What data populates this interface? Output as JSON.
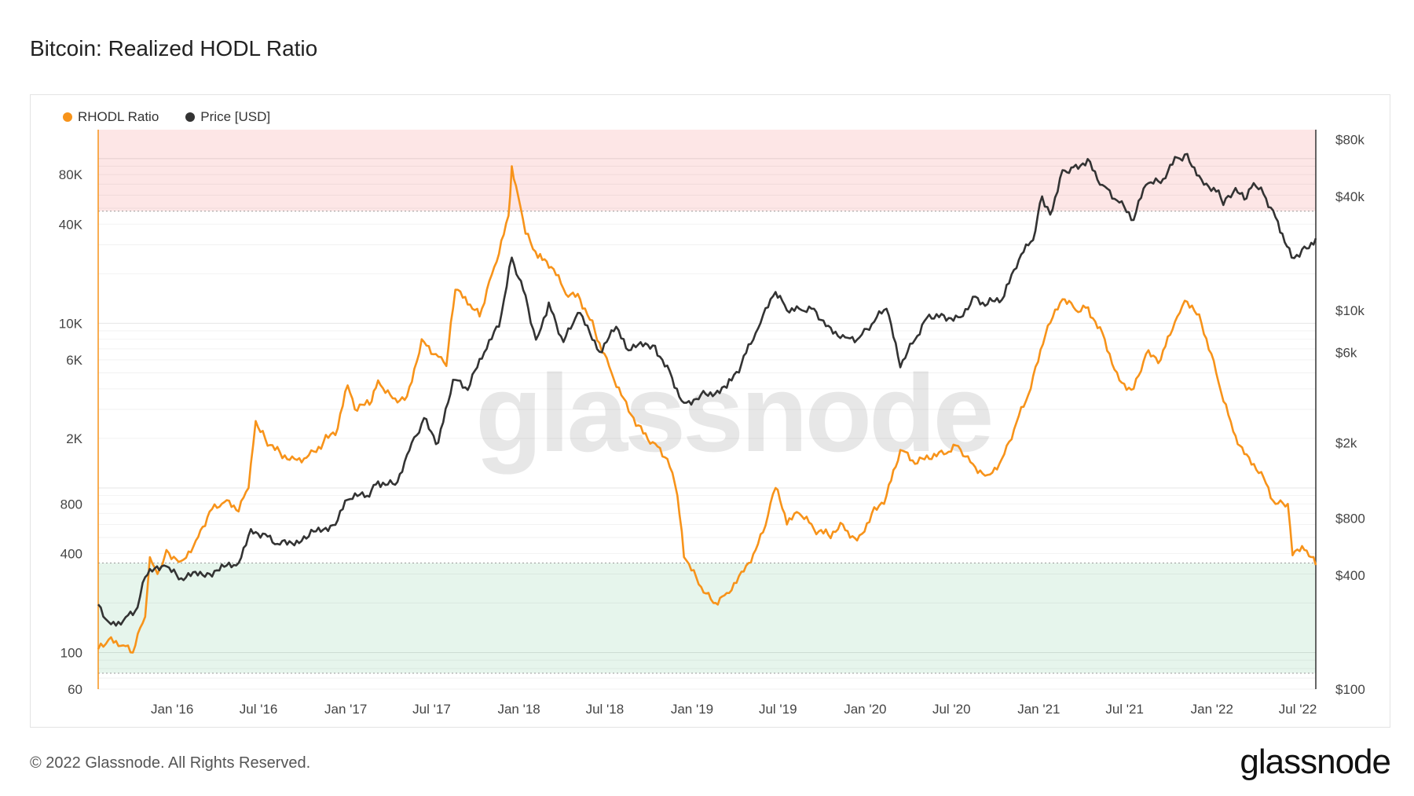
{
  "page": {
    "title": "Bitcoin: Realized HODL Ratio",
    "footer": "© 2022 Glassnode. All Rights Reserved.",
    "brand": "glassnode",
    "watermark": "glassnode"
  },
  "legend": [
    {
      "label": "RHODL Ratio",
      "color": "#f7931a"
    },
    {
      "label": "Price [USD]",
      "color": "#333333"
    }
  ],
  "chart_data": {
    "type": "line",
    "title": "Bitcoin: Realized HODL Ratio",
    "x_ticks": [
      "Jan '16",
      "Jul '16",
      "Jan '17",
      "Jul '17",
      "Jan '18",
      "Jul '18",
      "Jan '19",
      "Jul '19",
      "Jan '20",
      "Jul '20",
      "Jan '21",
      "Jul '21",
      "Jan '22",
      "Jul '22"
    ],
    "x_range": [
      "2015-07-29",
      "2022-08-08"
    ],
    "left_axis": {
      "scale": "log",
      "range": [
        60,
        150000
      ],
      "ticks": [
        "80K",
        "40K",
        "10K",
        "6K",
        "2K",
        "800",
        "400",
        "100",
        "60"
      ]
    },
    "right_axis": {
      "scale": "log",
      "range": [
        100,
        90000
      ],
      "ticks": [
        "$80k",
        "$40k",
        "$10k",
        "$6k",
        "$2k",
        "$800",
        "$400",
        "$100"
      ]
    },
    "bands": [
      {
        "name": "top",
        "color": "#fde6e6",
        "axis": "left",
        "from": 48000,
        "to": 150000
      },
      {
        "name": "bottom",
        "color": "#e6f5ec",
        "axis": "left",
        "from": 75,
        "to": 350
      }
    ],
    "grid": true,
    "legend_position": "top-left",
    "series": [
      {
        "name": "RHODL Ratio",
        "axis": "left",
        "color": "#f7931a",
        "points": [
          [
            "2015-07-29",
            105
          ],
          [
            "2015-08-20",
            120
          ],
          [
            "2015-09-15",
            110
          ],
          [
            "2015-10-10",
            100
          ],
          [
            "2015-11-05",
            165
          ],
          [
            "2015-11-15",
            380
          ],
          [
            "2015-12-01",
            300
          ],
          [
            "2015-12-20",
            420
          ],
          [
            "2016-01-20",
            360
          ],
          [
            "2016-02-20",
            480
          ],
          [
            "2016-03-20",
            720
          ],
          [
            "2016-04-20",
            820
          ],
          [
            "2016-05-20",
            720
          ],
          [
            "2016-06-10",
            1000
          ],
          [
            "2016-06-25",
            2550
          ],
          [
            "2016-07-15",
            2000
          ],
          [
            "2016-08-15",
            1650
          ],
          [
            "2016-09-15",
            1500
          ],
          [
            "2016-10-15",
            1580
          ],
          [
            "2016-11-15",
            1900
          ],
          [
            "2016-12-15",
            2300
          ],
          [
            "2017-01-05",
            4200
          ],
          [
            "2017-01-20",
            3000
          ],
          [
            "2017-02-20",
            3200
          ],
          [
            "2017-03-10",
            4500
          ],
          [
            "2017-04-10",
            3500
          ],
          [
            "2017-05-10",
            3600
          ],
          [
            "2017-06-10",
            8000
          ],
          [
            "2017-07-10",
            6500
          ],
          [
            "2017-08-01",
            5500
          ],
          [
            "2017-08-20",
            16000
          ],
          [
            "2017-09-15",
            13000
          ],
          [
            "2017-10-10",
            11000
          ],
          [
            "2017-11-10",
            22000
          ],
          [
            "2017-12-10",
            45000
          ],
          [
            "2017-12-17",
            90000
          ],
          [
            "2017-12-30",
            60000
          ],
          [
            "2018-01-15",
            35000
          ],
          [
            "2018-02-10",
            25000
          ],
          [
            "2018-03-10",
            22000
          ],
          [
            "2018-04-10",
            15000
          ],
          [
            "2018-05-10",
            14000
          ],
          [
            "2018-06-10",
            9000
          ],
          [
            "2018-07-10",
            5500
          ],
          [
            "2018-08-10",
            3500
          ],
          [
            "2018-09-10",
            2400
          ],
          [
            "2018-10-10",
            1900
          ],
          [
            "2018-11-10",
            1500
          ],
          [
            "2018-12-01",
            900
          ],
          [
            "2018-12-15",
            380
          ],
          [
            "2019-01-15",
            260
          ],
          [
            "2019-02-15",
            200
          ],
          [
            "2019-03-15",
            230
          ],
          [
            "2019-04-15",
            310
          ],
          [
            "2019-05-15",
            420
          ],
          [
            "2019-06-10",
            680
          ],
          [
            "2019-06-26",
            1000
          ],
          [
            "2019-07-20",
            600
          ],
          [
            "2019-08-15",
            700
          ],
          [
            "2019-09-15",
            560
          ],
          [
            "2019-10-15",
            520
          ],
          [
            "2019-11-15",
            600
          ],
          [
            "2019-12-15",
            480
          ],
          [
            "2020-01-15",
            700
          ],
          [
            "2020-02-15",
            900
          ],
          [
            "2020-03-15",
            1700
          ],
          [
            "2020-04-15",
            1400
          ],
          [
            "2020-05-15",
            1500
          ],
          [
            "2020-06-15",
            1600
          ],
          [
            "2020-07-15",
            1800
          ],
          [
            "2020-08-15",
            1400
          ],
          [
            "2020-09-15",
            1200
          ],
          [
            "2020-10-15",
            1500
          ],
          [
            "2020-11-15",
            2500
          ],
          [
            "2020-12-15",
            4000
          ],
          [
            "2021-01-15",
            8500
          ],
          [
            "2021-02-20",
            14000
          ],
          [
            "2021-03-20",
            12000
          ],
          [
            "2021-04-15",
            12500
          ],
          [
            "2021-05-20",
            8000
          ],
          [
            "2021-06-20",
            4500
          ],
          [
            "2021-07-20",
            4000
          ],
          [
            "2021-08-15",
            6500
          ],
          [
            "2021-09-15",
            6000
          ],
          [
            "2021-10-20",
            11000
          ],
          [
            "2021-11-10",
            13500
          ],
          [
            "2021-12-10",
            10000
          ],
          [
            "2022-01-10",
            5000
          ],
          [
            "2022-02-15",
            2200
          ],
          [
            "2022-03-15",
            1600
          ],
          [
            "2022-04-15",
            1250
          ],
          [
            "2022-05-15",
            800
          ],
          [
            "2022-06-10",
            800
          ],
          [
            "2022-06-20",
            390
          ],
          [
            "2022-07-15",
            420
          ],
          [
            "2022-08-08",
            340
          ]
        ]
      },
      {
        "name": "Price [USD]",
        "axis": "right",
        "color": "#333333",
        "points": [
          [
            "2015-07-29",
            280
          ],
          [
            "2015-08-25",
            220
          ],
          [
            "2015-09-20",
            230
          ],
          [
            "2015-10-20",
            270
          ],
          [
            "2015-11-05",
            390
          ],
          [
            "2015-12-15",
            450
          ],
          [
            "2016-01-15",
            380
          ],
          [
            "2016-03-15",
            410
          ],
          [
            "2016-05-15",
            450
          ],
          [
            "2016-06-15",
            700
          ],
          [
            "2016-07-15",
            660
          ],
          [
            "2016-08-15",
            580
          ],
          [
            "2016-10-15",
            640
          ],
          [
            "2016-12-15",
            780
          ],
          [
            "2017-01-05",
            1000
          ],
          [
            "2017-02-15",
            1050
          ],
          [
            "2017-03-10",
            1250
          ],
          [
            "2017-04-15",
            1200
          ],
          [
            "2017-05-20",
            2000
          ],
          [
            "2017-06-15",
            2700
          ],
          [
            "2017-07-15",
            2000
          ],
          [
            "2017-08-15",
            4300
          ],
          [
            "2017-09-15",
            3800
          ],
          [
            "2017-10-20",
            6000
          ],
          [
            "2017-11-20",
            8200
          ],
          [
            "2017-12-17",
            19000
          ],
          [
            "2018-01-15",
            12000
          ],
          [
            "2018-02-06",
            7000
          ],
          [
            "2018-03-05",
            11000
          ],
          [
            "2018-04-05",
            6800
          ],
          [
            "2018-05-05",
            9700
          ],
          [
            "2018-06-25",
            6000
          ],
          [
            "2018-07-25",
            8200
          ],
          [
            "2018-08-15",
            6300
          ],
          [
            "2018-10-15",
            6500
          ],
          [
            "2018-11-20",
            4400
          ],
          [
            "2018-12-15",
            3250
          ],
          [
            "2019-01-20",
            3600
          ],
          [
            "2019-03-15",
            3900
          ],
          [
            "2019-04-15",
            5200
          ],
          [
            "2019-05-20",
            8000
          ],
          [
            "2019-06-26",
            12500
          ],
          [
            "2019-07-20",
            10000
          ],
          [
            "2019-08-15",
            10200
          ],
          [
            "2019-09-15",
            10200
          ],
          [
            "2019-10-15",
            8300
          ],
          [
            "2019-11-20",
            7200
          ],
          [
            "2019-12-20",
            7200
          ],
          [
            "2020-01-20",
            8700
          ],
          [
            "2020-02-15",
            10200
          ],
          [
            "2020-03-15",
            5000
          ],
          [
            "2020-04-15",
            7000
          ],
          [
            "2020-05-15",
            9500
          ],
          [
            "2020-06-15",
            9400
          ],
          [
            "2020-07-20",
            9200
          ],
          [
            "2020-08-15",
            11800
          ],
          [
            "2020-09-15",
            10800
          ],
          [
            "2020-10-20",
            11900
          ],
          [
            "2020-11-20",
            18500
          ],
          [
            "2020-12-20",
            23500
          ],
          [
            "2021-01-08",
            40000
          ],
          [
            "2021-01-25",
            32000
          ],
          [
            "2021-02-20",
            55000
          ],
          [
            "2021-03-15",
            57000
          ],
          [
            "2021-04-14",
            63000
          ],
          [
            "2021-05-15",
            46000
          ],
          [
            "2021-06-15",
            38000
          ],
          [
            "2021-07-20",
            30000
          ],
          [
            "2021-08-15",
            46000
          ],
          [
            "2021-09-15",
            47000
          ],
          [
            "2021-10-20",
            64000
          ],
          [
            "2021-11-10",
            67000
          ],
          [
            "2021-12-10",
            49000
          ],
          [
            "2022-01-15",
            43000
          ],
          [
            "2022-01-25",
            36000
          ],
          [
            "2022-02-15",
            42000
          ],
          [
            "2022-03-15",
            39000
          ],
          [
            "2022-03-30",
            47000
          ],
          [
            "2022-04-25",
            39000
          ],
          [
            "2022-05-20",
            29500
          ],
          [
            "2022-06-18",
            19000
          ],
          [
            "2022-07-10",
            21000
          ],
          [
            "2022-08-08",
            24000
          ]
        ]
      }
    ]
  }
}
